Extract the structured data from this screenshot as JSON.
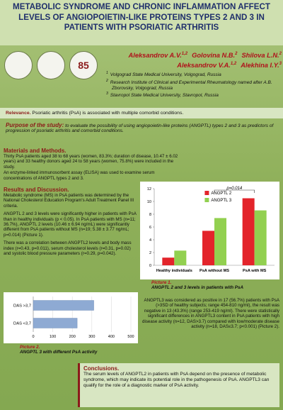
{
  "title": "METABOLIC SYNDROME AND CHRONIC INFLAMMATION AFFECT LEVELS OF ANGIOPOIETIN-LIKE PROTEINS TYPES 2 AND 3 IN PATIENTS WITH PSORIATIC ARTHRITIS",
  "logos": [
    "85"
  ],
  "authors": [
    {
      "name": "Aleksandrov A.V.",
      "sup": "1,2"
    },
    {
      "name": "Golovina N.B.",
      "sup": "2"
    },
    {
      "name": "Shilova L.N.",
      "sup": "2"
    },
    {
      "name": "Aleksandrov V.A.",
      "sup": "1,2"
    },
    {
      "name": "Alekhina I.Y.",
      "sup": "3"
    }
  ],
  "affiliations": [
    {
      "sup": "1",
      "text": "Volgograd State Medical University, Volgograd, Russia"
    },
    {
      "sup": "2",
      "text": "Research Institute of Clinical and Experimental Rheumatology named after A.B. Zborovsky, Volgograd, Russia"
    },
    {
      "sup": "3",
      "text": "Stavropol State Medical University, Stavropol, Russia"
    }
  ],
  "relevance": {
    "label": "Relevance.",
    "text": "Psoriatic arthritis (PsA) is associated with multiple comorbid conditions."
  },
  "purpose": {
    "label": "Purpose of the study:",
    "text": "to evaluate the possibility of using angiopoietin-like proteins (ANGPTL) types 2 and 3 as predictors of progression of psoriatic arthritis and comorbid conditions."
  },
  "methods": {
    "heading": "Materials and Methods.",
    "paragraphs": [
      "Thirty PsA patients aged 38 to 68 years (women, 83.3%; duration of disease, 10.47 ± 6.02 years) and 33 healthy donors aged 24 to 58 years (women, 75.8%) were included in the study.",
      "An enzyme-linked immunosorbent assay (ELISA) was used to examine serum concentrations of ANGPTL types 2 and 3."
    ]
  },
  "results": {
    "heading": "Results and Discussion.",
    "paragraphs": [
      "Metabolic syndrome (MS) in PsA patients was determined by the National Cholesterol Education Program's Adult Treatment Panel III criteria.",
      "ANGPTL 2 and 3 levels were significantly higher in patients with PsA than in healthy individuals (p < 0.05). In PsA patients with MS (n=11; 36.7%), ANGPTL 2 levels (10.46 ± 6.94 ng/mL) were significantly different from PsA patients without MS (n=19; 5.38 ± 3.77 ng/mL; p=0.014) (Picture 1).",
      "There was a correlation between ANGPTL2 levels and body mass index (r=0.43, p=0.011), serum cholesterol levels (r=0.31, p=0.02) and systolic blood pressure parameters (r=0.29, p=0.042)."
    ],
    "angptl3_text": "ANGPTL3 was considered as positive in 17 (56.7%) patients with PsA (>3SD of healthy subjects; range 454-810 ng/ml), the result was negative in 13 (43.3%) (range 253-419 ng/ml). There were statistically significant differences in ANGPTL3 content in PsA patients with high disease activity (n=12, DAS>3.7) compared with low/moderate disease activity (n=18, DAS≤3.7; p<0.001) (Picture 2)."
  },
  "conclusions": {
    "heading": "Conclusions.",
    "text": "The serum levels of ANGPTL2 in patients with PsA depend on the presence of metabolic syndrome, which may indicate its potential role in the pathogenesis of PsA. ANGPTL3 can qualify for the role of a diagnostic marker of PsA activity."
  },
  "chart_data": [
    {
      "type": "bar",
      "orientation": "vertical",
      "caption": "Picture 1.",
      "title": "ANGPTL 2 and 3 levels in patients with PsA",
      "categories": [
        "Healthy individuals",
        "PsA without MS",
        "PsA with MS"
      ],
      "series": [
        {
          "name": "ANGPTL 2",
          "color": "#e3242b",
          "values": [
            1.2,
            5.4,
            10.5
          ]
        },
        {
          "name": "ANGPTL 3",
          "color": "#92d050",
          "values": [
            2.3,
            7.4,
            8.6
          ]
        }
      ],
      "ylim": [
        0,
        12
      ],
      "yticks": [
        0,
        2,
        4,
        6,
        8,
        10,
        12
      ],
      "grid": false,
      "legend": "upper center",
      "annotation": "p=0.014"
    },
    {
      "type": "bar",
      "orientation": "horizontal",
      "caption": "Picture 2.",
      "title": "ANGPTL 3 with different PsA activity",
      "categories": [
        "DAS >3,7",
        "DAS <3,7"
      ],
      "values": [
        310,
        225
      ],
      "color": "#8eaad3",
      "xlim": [
        0,
        500
      ],
      "xticks": [
        0,
        100,
        200,
        300,
        400,
        500
      ],
      "grid": true
    }
  ]
}
